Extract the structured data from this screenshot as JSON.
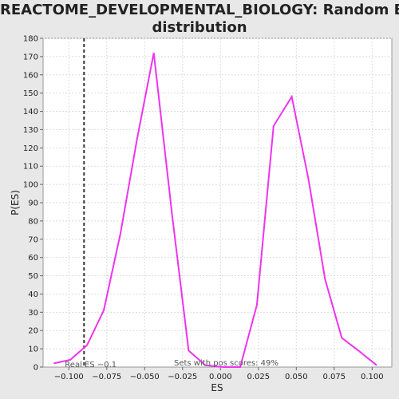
{
  "chart_data": {
    "type": "line",
    "title_line1": "REACTOME_DEVELOPMENTAL_BIOLOGY: Random ES",
    "title_line2": "distribution",
    "xlabel": "ES",
    "ylabel": "P(ES)",
    "xlim": [
      -0.117,
      0.113
    ],
    "ylim": [
      0,
      180
    ],
    "x_ticks": [
      -0.1,
      -0.075,
      -0.05,
      -0.025,
      0.0,
      0.025,
      0.05,
      0.075,
      0.1
    ],
    "x_tick_labels": [
      "−0.100",
      "−0.075",
      "−0.050",
      "−0.025",
      "0.000",
      "0.025",
      "0.050",
      "0.075",
      "0.100"
    ],
    "y_ticks": [
      0,
      10,
      20,
      30,
      40,
      50,
      60,
      70,
      80,
      90,
      100,
      110,
      120,
      130,
      140,
      150,
      160,
      170,
      180
    ],
    "grid": true,
    "series": [
      {
        "color": "#ee33ee",
        "x": [
          -0.11,
          -0.099,
          -0.088,
          -0.077,
          -0.066,
          -0.055,
          -0.044,
          -0.032,
          -0.021,
          -0.01,
          0.002,
          0.013,
          0.024,
          0.035,
          0.047,
          0.058,
          0.069,
          0.08,
          0.091,
          0.103
        ],
        "y": [
          2,
          4,
          12,
          31,
          73,
          125,
          172,
          84,
          9,
          1,
          0,
          0,
          34,
          132,
          148,
          103,
          48,
          16,
          9,
          1
        ]
      }
    ],
    "real_es": {
      "x": -0.09,
      "color": "#333333",
      "label": "Real ES −0.1"
    },
    "annotation": "Sets with pos scores: 49%"
  }
}
